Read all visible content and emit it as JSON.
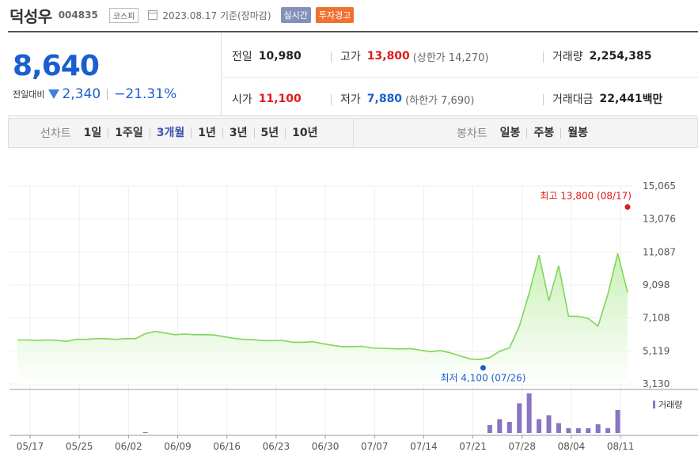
{
  "header": {
    "name": "덕성우",
    "code": "004835",
    "market": "코스피",
    "date": "2023.08.17 기준(장마감)",
    "realtime": "실시간",
    "warning": "투자경고"
  },
  "price": {
    "current": "8,640",
    "change_label": "전일대비",
    "change": "2,340",
    "change_pct": "−21.31%"
  },
  "stats": {
    "prev_label": "전일",
    "prev": "10,980",
    "high_label": "고가",
    "high": "13,800",
    "upper_limit": "(상한가 14,270)",
    "volume_label": "거래량",
    "volume": "2,254,385",
    "open_label": "시가",
    "open": "11,100",
    "low_label": "저가",
    "low": "7,880",
    "lower_limit": "(하한가 7,690)",
    "amount_label": "거래대금",
    "amount": "22,441",
    "amount_unit": "백만"
  },
  "periods": {
    "line_label": "선차트",
    "line_items": [
      "1일",
      "1주일",
      "3개월",
      "1년",
      "3년",
      "5년",
      "10년"
    ],
    "active": "3개월",
    "candle_label": "봉차트",
    "candle_items": [
      "일봉",
      "주봉",
      "월봉"
    ]
  },
  "colors": {
    "line": "#7fd65a",
    "fill_top": "#c8f0b4",
    "max": "#e01a1a",
    "min": "#1a5fd0",
    "volume": "#8a74c4"
  },
  "chart_data": {
    "type": "area",
    "x_ticks": [
      "05/17",
      "05/25",
      "06/02",
      "06/09",
      "06/16",
      "06/23",
      "06/30",
      "07/07",
      "07/14",
      "07/21",
      "07/28",
      "08/04",
      "08/11"
    ],
    "y_ticks": [
      "15,065",
      "13,076",
      "11,087",
      "9,098",
      "7,108",
      "5,119",
      "3,130"
    ],
    "ylim": [
      3130,
      15065
    ],
    "max_label": "최고 13,800 (08/17)",
    "max_value": 13800,
    "min_label": "최저 4,100 (07/26)",
    "min_value": 4100,
    "volume_legend": "거래량",
    "series": [
      {
        "values": [
          5780,
          5780,
          5760,
          5780,
          5760,
          5700,
          5820,
          5820,
          5860,
          5860,
          5820,
          5860,
          5860,
          6160,
          6300,
          6200,
          6100,
          6140,
          6100,
          6100,
          6080,
          5980,
          5880,
          5820,
          5800,
          5740,
          5740,
          5740,
          5640,
          5640,
          5680,
          5560,
          5460,
          5380,
          5380,
          5400,
          5300,
          5280,
          5260,
          5240,
          5260,
          5160,
          5080,
          5140,
          5000,
          4820,
          4640,
          4600,
          4720,
          5100,
          5300,
          6600,
          8600,
          10900,
          8150,
          10250,
          7220,
          7200,
          7080,
          6620,
          8540,
          11000,
          8640
        ]
      }
    ],
    "volume_values": [
      0,
      0,
      0,
      0,
      0,
      0,
      0,
      0,
      0,
      0,
      0,
      0,
      0,
      0.02,
      0,
      0,
      0,
      0,
      0,
      0,
      0,
      0,
      0,
      0,
      0,
      0,
      0,
      0,
      0,
      0,
      0,
      0,
      0,
      0,
      0,
      0,
      0,
      0,
      0,
      0,
      0,
      0,
      0,
      0,
      0,
      0,
      0,
      0,
      0.2,
      0.35,
      0.28,
      0.75,
      1.0,
      0.35,
      0.45,
      0.25,
      0.12,
      0.12,
      0.12,
      0.22,
      0.12,
      0.58,
      0
    ]
  }
}
